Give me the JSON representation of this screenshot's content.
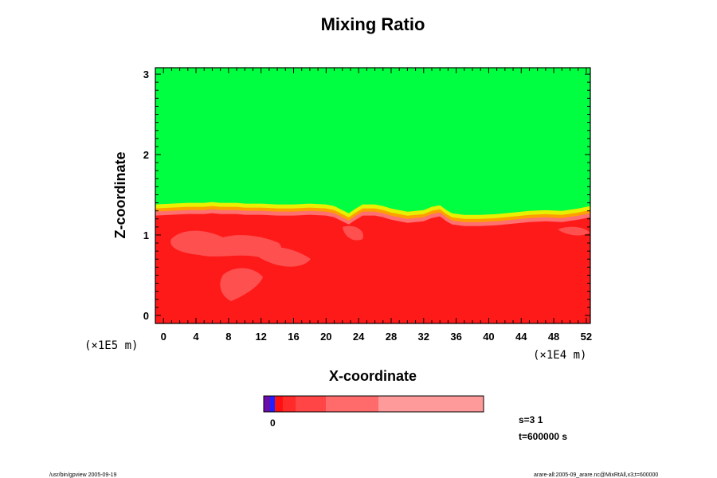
{
  "chart_data": {
    "type": "heatmap",
    "title": "Mixing Ratio",
    "xlabel": "X-coordinate",
    "ylabel": "Z-coordinate",
    "x_scale_label": "(×1E4 m)",
    "y_scale_label": "(×1E5 m)",
    "xlim": [
      -1,
      52.5
    ],
    "ylim": [
      -0.1,
      3.08
    ],
    "x_ticks": [
      0,
      4,
      8,
      12,
      16,
      20,
      24,
      28,
      32,
      36,
      40,
      44,
      48,
      52
    ],
    "y_ticks": [
      0,
      1,
      2,
      3
    ],
    "colors": {
      "upper": "#00ff40",
      "lower": "#ff1a1a",
      "transition_yellow": "#e8f000",
      "transition_orange": "#ffa000",
      "pale_red": "#ff7070"
    },
    "interface_height": [
      [
        -1,
        1.38
      ],
      [
        1,
        1.39
      ],
      [
        3,
        1.4
      ],
      [
        5,
        1.4
      ],
      [
        6,
        1.41
      ],
      [
        7,
        1.4
      ],
      [
        8,
        1.4
      ],
      [
        9,
        1.4
      ],
      [
        10,
        1.39
      ],
      [
        12,
        1.39
      ],
      [
        14,
        1.38
      ],
      [
        16,
        1.38
      ],
      [
        18,
        1.39
      ],
      [
        20,
        1.38
      ],
      [
        21,
        1.36
      ],
      [
        22,
        1.31
      ],
      [
        22.8,
        1.27
      ],
      [
        23.5,
        1.32
      ],
      [
        24.5,
        1.38
      ],
      [
        26,
        1.38
      ],
      [
        27,
        1.36
      ],
      [
        28,
        1.33
      ],
      [
        29,
        1.31
      ],
      [
        30,
        1.29
      ],
      [
        31,
        1.3
      ],
      [
        32,
        1.31
      ],
      [
        33,
        1.35
      ],
      [
        34,
        1.37
      ],
      [
        34.8,
        1.31
      ],
      [
        35.5,
        1.27
      ],
      [
        37,
        1.25
      ],
      [
        39,
        1.25
      ],
      [
        41,
        1.26
      ],
      [
        43,
        1.28
      ],
      [
        45,
        1.3
      ],
      [
        47,
        1.31
      ],
      [
        49,
        1.3
      ],
      [
        51,
        1.33
      ],
      [
        52.5,
        1.36
      ]
    ]
  },
  "colorbar": {
    "label": "0",
    "segments": [
      {
        "color": "#6a0dad",
        "width": 8
      },
      {
        "color": "#2020ff",
        "width": 6
      },
      {
        "color": "#ff1010",
        "width": 10
      },
      {
        "color": "#ff2a2a",
        "width": 16
      },
      {
        "color": "#ff4545",
        "width": 38
      },
      {
        "color": "#ff6a6a",
        "width": 66
      },
      {
        "color": "#ff9a9a",
        "width": 132
      }
    ]
  },
  "annotation": {
    "s_label": "s=3 1",
    "t_label": "t=600000 s"
  },
  "footer": {
    "left": "/usr/bin/gpview 2005-09-19",
    "right": "arare-all:2005-09_arare.nc@MixRtAll,x3;t=600000"
  }
}
